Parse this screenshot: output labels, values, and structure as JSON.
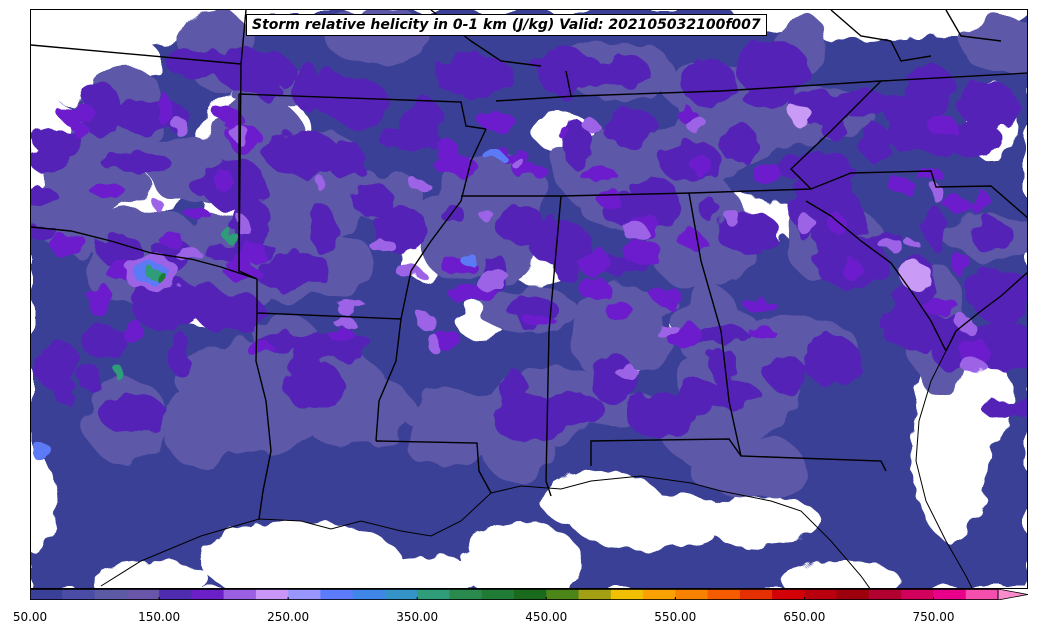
{
  "title": "Storm relative helicity in 0-1 km (J/kg) Valid: 202105032100f007",
  "colorbar": {
    "min": 50,
    "max": 800,
    "step": 25,
    "extend": "max",
    "ticks": [
      "50.00",
      "150.00",
      "250.00",
      "350.00",
      "450.00",
      "550.00",
      "650.00",
      "750.00"
    ],
    "colors": [
      "#3a3f98",
      "#4a4ca6",
      "#5c5aa5",
      "#6a56a9",
      "#4f2bb0",
      "#6a1fc7",
      "#9b5fe2",
      "#c995f6",
      "#9a96ff",
      "#5c7cfb",
      "#3f86e6",
      "#3494c8",
      "#2f9d7a",
      "#2a8a4e",
      "#1f7b36",
      "#1a6a1e",
      "#4c8518",
      "#a3a014",
      "#f1c002",
      "#f8a100",
      "#f98100",
      "#f55c00",
      "#e43000",
      "#d20007",
      "#b9000e",
      "#9d000c",
      "#b20030",
      "#d0005c",
      "#e8008a",
      "#f44fac",
      "#fb8ccb"
    ]
  },
  "fill_colors": {
    "background": "#ffffff",
    "base": "#3b3f97",
    "medium": "#5d58a8",
    "purple": "#5523b8",
    "violet": "#6c1fcc",
    "lavender": "#9d63e6",
    "light_lavender": "#c99af6",
    "blue": "#5b79f6",
    "teal": "#2e9d78",
    "green": "#1f7b36"
  }
}
